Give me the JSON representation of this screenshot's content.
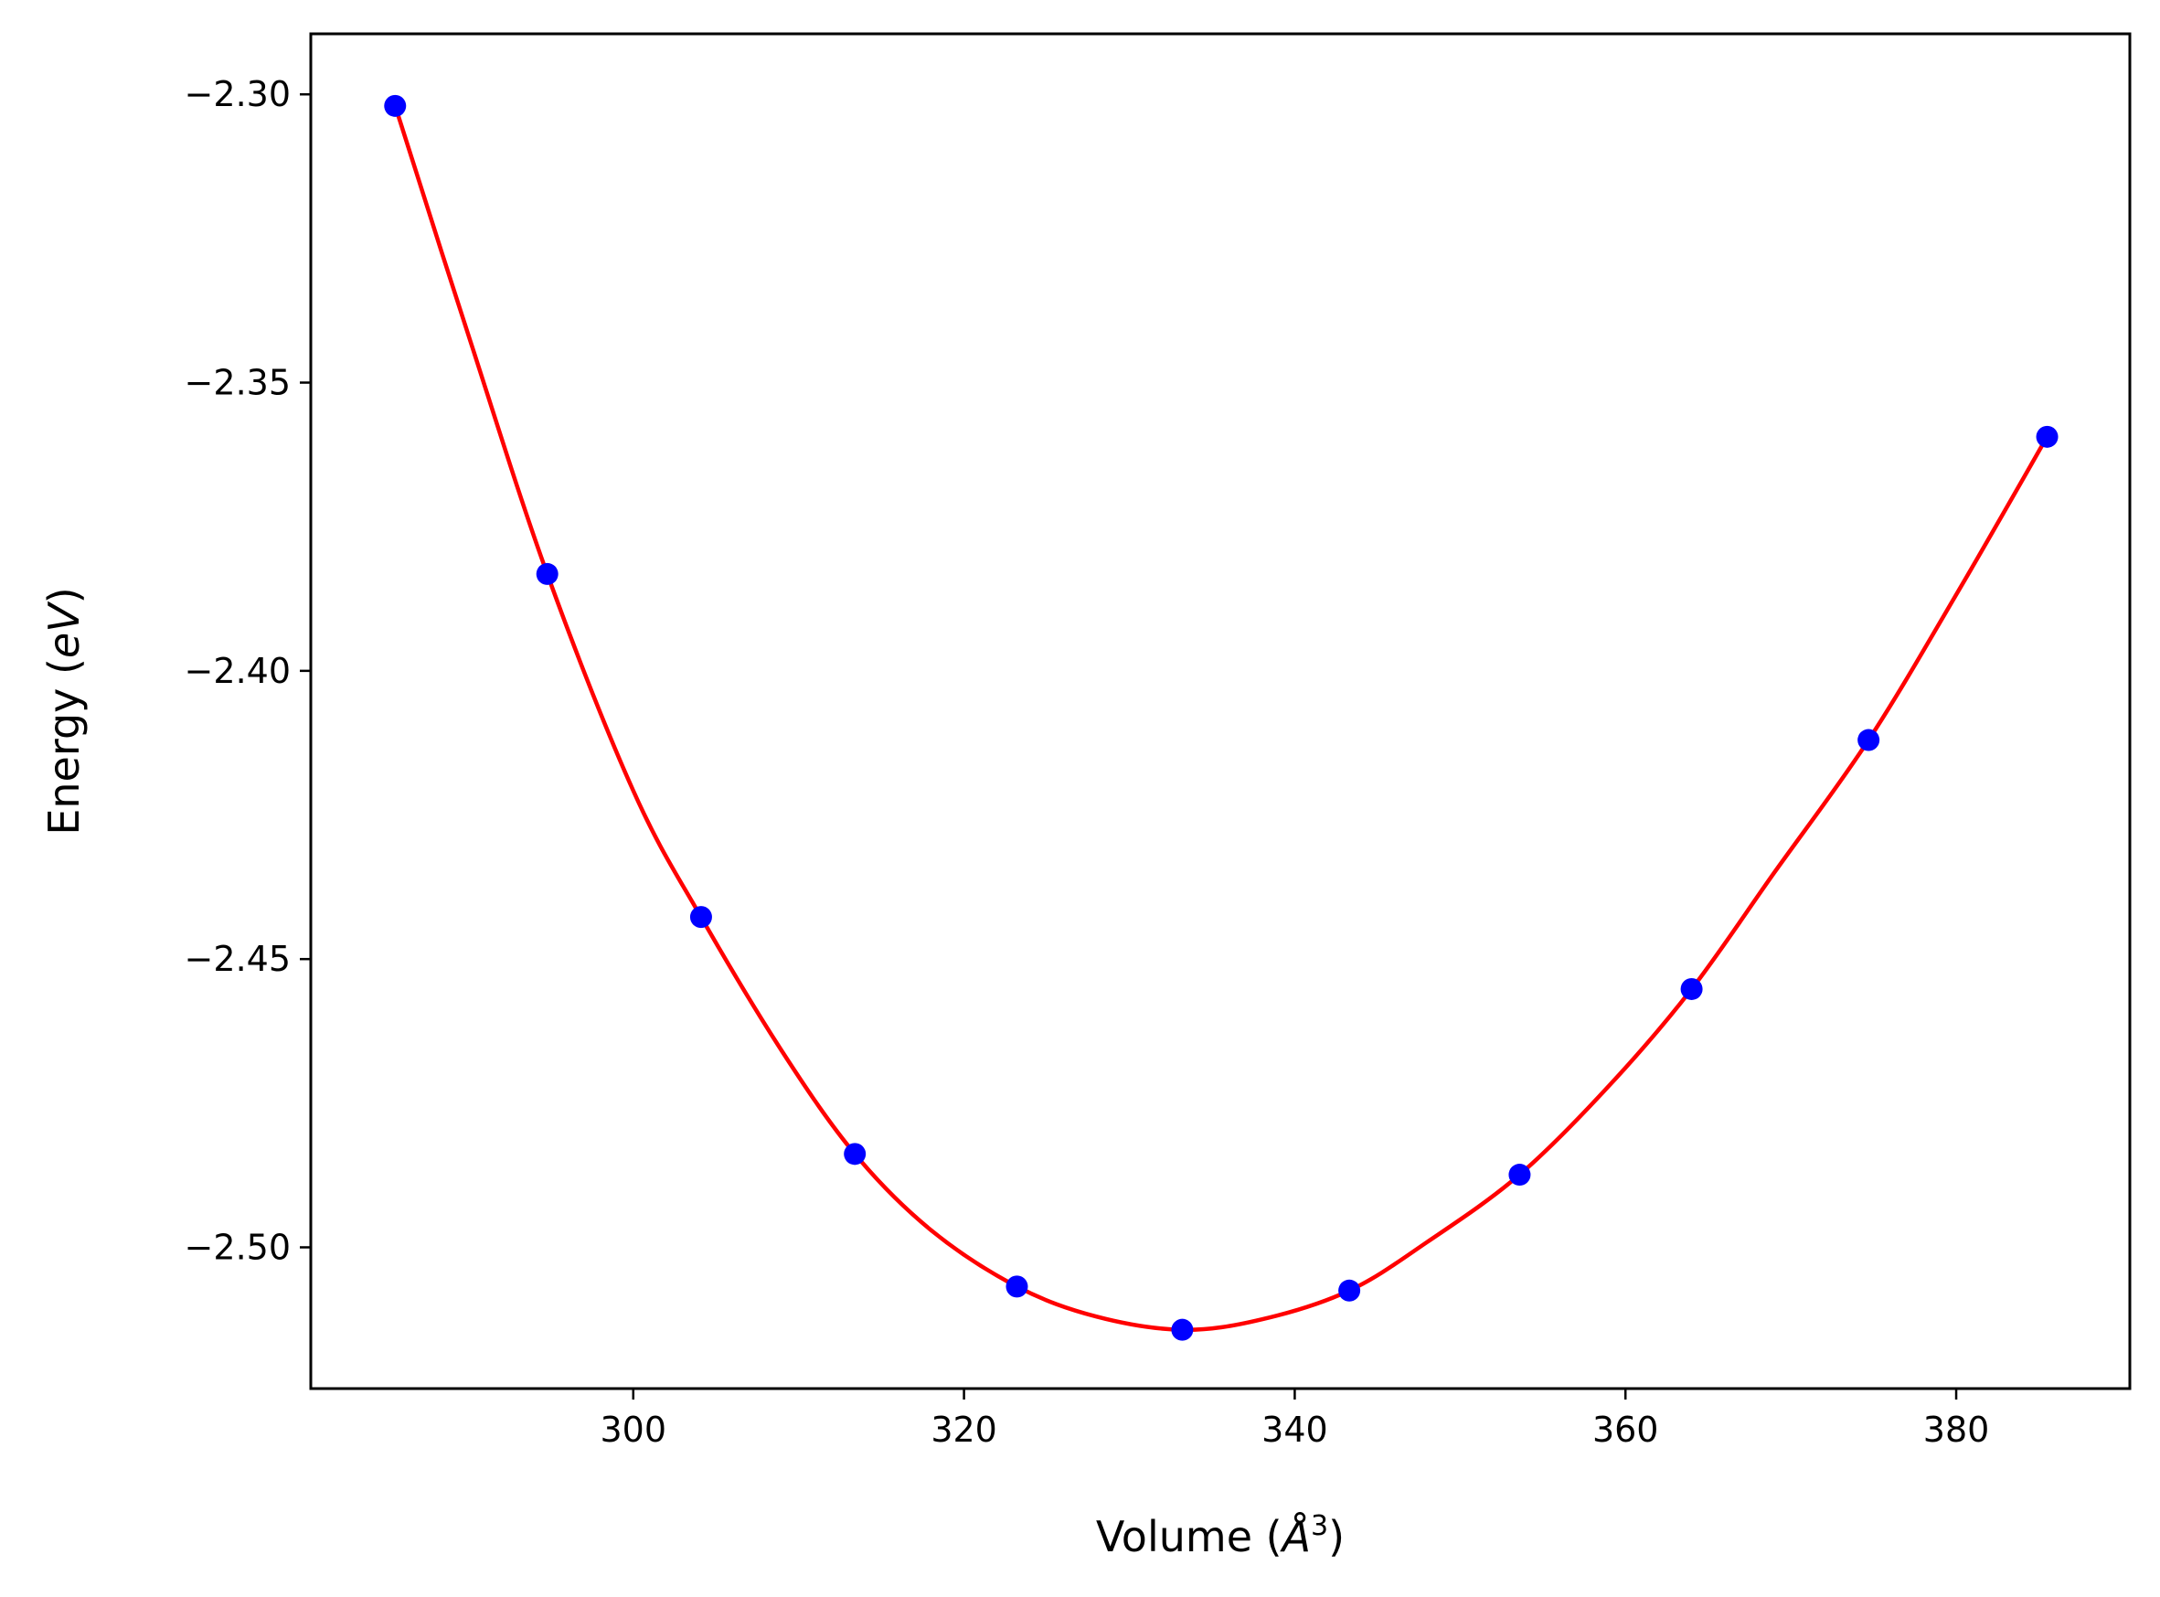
{
  "chart_data": {
    "type": "line",
    "title": "",
    "xlabel": "Volume (",
    "xlabel_unit": "Å",
    "xlabel_exp": "3",
    "xlabel_close": ")",
    "ylabel": "Energy (",
    "ylabel_unit": "eV",
    "ylabel_close": ")",
    "xlim": [
      280.5,
      390.5
    ],
    "ylim": [
      -2.5245,
      -2.2895
    ],
    "xticks": [
      300,
      320,
      340,
      360,
      380
    ],
    "xtick_labels": [
      "300",
      "320",
      "340",
      "360",
      "380"
    ],
    "yticks": [
      -2.3,
      -2.35,
      -2.4,
      -2.45,
      -2.5
    ],
    "ytick_labels": [
      "−2.30",
      "−2.35",
      "−2.40",
      "−2.45",
      "−2.50"
    ],
    "grid": false,
    "series": [
      {
        "kind": "points",
        "color": "#0000ff",
        "x": [
          285.6,
          294.8,
          304.1,
          313.4,
          323.2,
          333.2,
          343.3,
          353.6,
          364.0,
          374.7,
          385.5
        ],
        "y": [
          -2.302,
          -2.3832,
          -2.4427,
          -2.4838,
          -2.5068,
          -2.5143,
          -2.5075,
          -2.4874,
          -2.4552,
          -2.412,
          -2.3594
        ]
      },
      {
        "kind": "fit-curve",
        "color": "#ff0000",
        "x": [
          285.6,
          290.0,
          294.8,
          300.0,
          304.1,
          309.0,
          313.4,
          318.0,
          323.2,
          328.0,
          333.2,
          338.0,
          343.3,
          348.0,
          353.6,
          359.0,
          364.0,
          369.0,
          374.7,
          380.0,
          385.5
        ],
        "y": [
          -2.302,
          -2.3415,
          -2.3832,
          -2.4208,
          -2.4427,
          -2.466,
          -2.4838,
          -2.497,
          -2.5068,
          -2.512,
          -2.5143,
          -2.5125,
          -2.5075,
          -2.4991,
          -2.4874,
          -2.472,
          -2.4552,
          -2.435,
          -2.412,
          -2.3868,
          -2.3594
        ]
      }
    ]
  }
}
